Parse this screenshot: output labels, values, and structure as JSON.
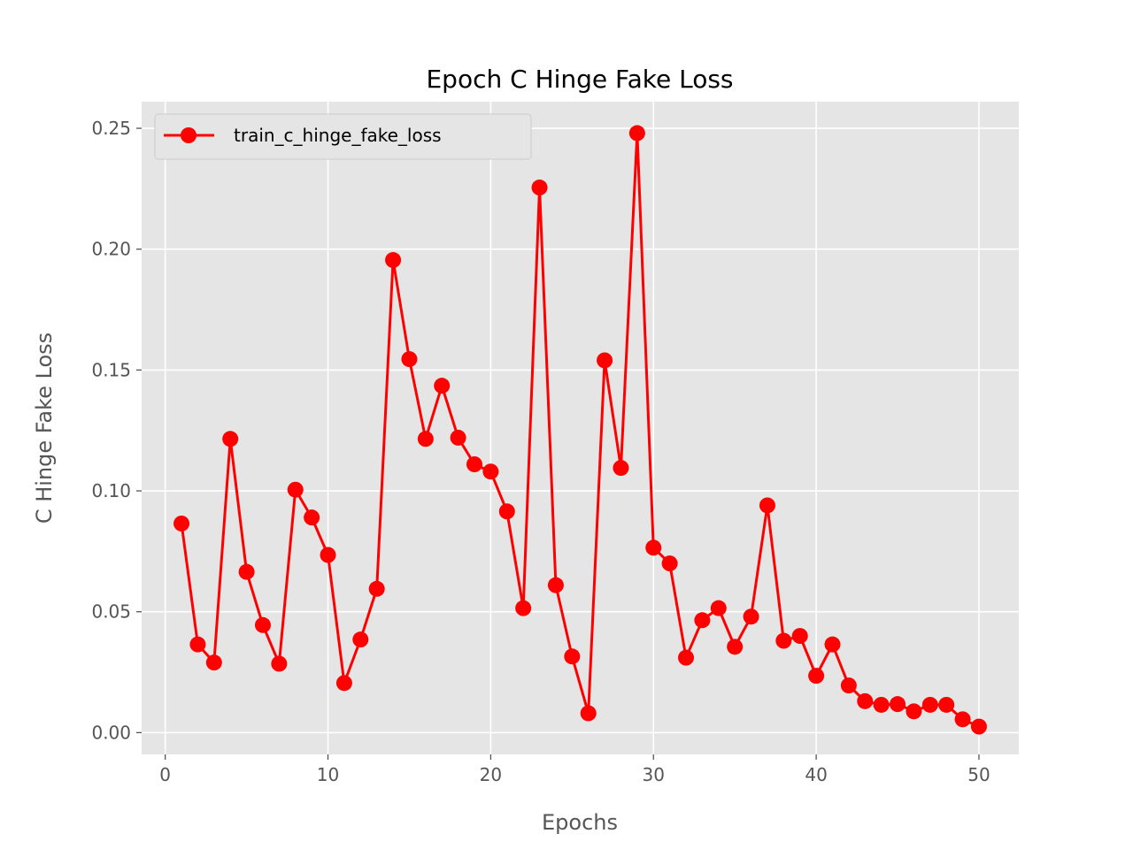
{
  "chart_data": {
    "type": "line",
    "title": "Epoch C Hinge Fake Loss",
    "xlabel": "Epochs",
    "ylabel": "C Hinge Fake Loss",
    "xlim": [
      -1.45,
      52.45
    ],
    "ylim": [
      -0.009,
      0.261
    ],
    "xticks": [
      0,
      10,
      20,
      30,
      40,
      50
    ],
    "xtick_labels": [
      "0",
      "10",
      "20",
      "30",
      "40",
      "50"
    ],
    "yticks": [
      0.0,
      0.05,
      0.1,
      0.15,
      0.2,
      0.25
    ],
    "ytick_labels": [
      "0.00",
      "0.05",
      "0.10",
      "0.15",
      "0.20",
      "0.25"
    ],
    "grid": true,
    "legend_position": "top-left",
    "background_color": "#e5e5e5",
    "grid_color": "#ffffff",
    "series": [
      {
        "name": "train_c_hinge_fake_loss",
        "color": "#ff0000",
        "marker": "circle",
        "x": [
          1,
          2,
          3,
          4,
          5,
          6,
          7,
          8,
          9,
          10,
          11,
          12,
          13,
          14,
          15,
          16,
          17,
          18,
          19,
          20,
          21,
          22,
          23,
          24,
          25,
          26,
          27,
          28,
          29,
          30,
          31,
          32,
          33,
          34,
          35,
          36,
          37,
          38,
          39,
          40,
          41,
          42,
          43,
          44,
          45,
          46,
          47,
          48,
          49,
          50
        ],
        "y": [
          0.0865,
          0.0365,
          0.029,
          0.1215,
          0.0665,
          0.0445,
          0.0285,
          0.1005,
          0.089,
          0.0735,
          0.0205,
          0.0385,
          0.0595,
          0.1955,
          0.1545,
          0.1215,
          0.1435,
          0.122,
          0.111,
          0.108,
          0.0915,
          0.0515,
          0.2255,
          0.061,
          0.0315,
          0.008,
          0.154,
          0.1095,
          0.248,
          0.0765,
          0.07,
          0.031,
          0.0465,
          0.0515,
          0.0355,
          0.048,
          0.094,
          0.038,
          0.04,
          0.0235,
          0.0365,
          0.0195,
          0.013,
          0.0115,
          0.0118,
          0.0088,
          0.0115,
          0.0115,
          0.0055,
          0.0025
        ]
      }
    ]
  }
}
